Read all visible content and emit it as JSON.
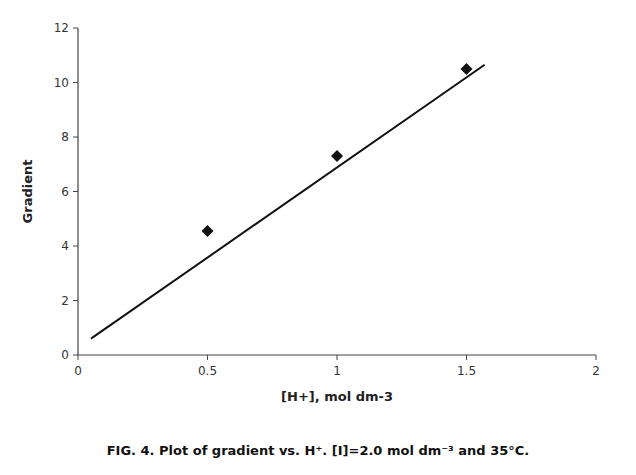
{
  "chart_data": {
    "type": "scatter",
    "xlabel": "[H+], mol dm-3",
    "ylabel": "Gradient",
    "annotations": [
      "FIG. 4. Plot of gradient vs. H⁺. [I]=2.0 mol dm⁻³ and 35°C."
    ],
    "series": [
      {
        "type": "scatter",
        "marker": "diamond",
        "color": "#111111",
        "x": [
          0.5,
          1.0,
          1.5
        ],
        "values": [
          4.55,
          7.3,
          10.5
        ]
      },
      {
        "type": "line",
        "color": "#111111",
        "x": [
          0.05,
          1.57
        ],
        "values": [
          0.6,
          10.65
        ]
      }
    ],
    "xlim": [
      0,
      2
    ],
    "ylim": [
      0,
      12
    ],
    "xticks": [
      0,
      0.5,
      1,
      1.5,
      2
    ],
    "yticks": [
      0,
      2,
      4,
      6,
      8,
      10,
      12
    ],
    "grid": false
  }
}
